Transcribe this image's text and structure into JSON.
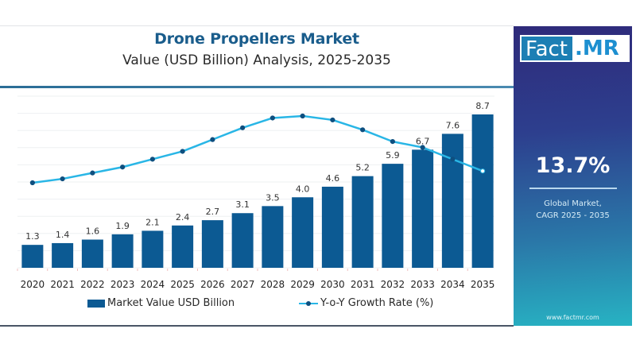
{
  "header": {
    "title": "Drone Propellers Market",
    "subtitle": "Value (USD Billion) Analysis, 2025-2035"
  },
  "side_panel": {
    "logo_left": "Fact",
    "logo_right": ".MR",
    "cagr_value": "13.7%",
    "cagr_label_line1": "Global Market,",
    "cagr_label_line2": "CAGR 2025 - 2035",
    "website": "www.factmr.com"
  },
  "colors": {
    "bar": "#0c5a93",
    "line": "#29b6e6",
    "marker": "#0f4f7f",
    "title": "#1a5d8c"
  },
  "chart_data": {
    "type": "bar",
    "title": "Drone Propellers Market",
    "subtitle": "Value (USD Billion) Analysis, 2025-2035",
    "xlabel": "",
    "ylabel": "",
    "categories": [
      "2020",
      "2021",
      "2022",
      "2023",
      "2024",
      "2025",
      "2026",
      "2027",
      "2028",
      "2029",
      "2030",
      "2031",
      "2032",
      "2033",
      "2034",
      "2035"
    ],
    "series": [
      {
        "name": "Market Value USD Billion",
        "type": "bar",
        "values": [
          1.3,
          1.4,
          1.6,
          1.9,
          2.1,
          2.4,
          2.7,
          3.1,
          3.5,
          4.0,
          4.6,
          5.2,
          5.9,
          6.7,
          7.6,
          8.7
        ],
        "labels": [
          "1.3",
          "1.4",
          "1.6",
          "1.9",
          "2.1",
          "2.4",
          "2.7",
          "3.1",
          "3.5",
          "4.0",
          "4.6",
          "5.2",
          "5.9",
          "6.7",
          "7.6",
          "8.7"
        ]
      },
      {
        "name": "Y-o-Y Growth Rate (%)",
        "type": "line",
        "note": "no axis shown; approximate relative values",
        "values": [
          7.7,
          7.9,
          8.2,
          8.5,
          8.9,
          9.3,
          9.9,
          10.5,
          11.0,
          11.1,
          10.9,
          10.4,
          9.8,
          9.5,
          8.9,
          8.3
        ]
      }
    ],
    "ylim": [
      0,
      8.7
    ],
    "line_ylim": [
      0,
      15
    ],
    "grid": true,
    "legend": {
      "position": "bottom",
      "entries": [
        "Market Value USD Billion",
        "Y-o-Y Growth Rate (%)"
      ]
    }
  }
}
